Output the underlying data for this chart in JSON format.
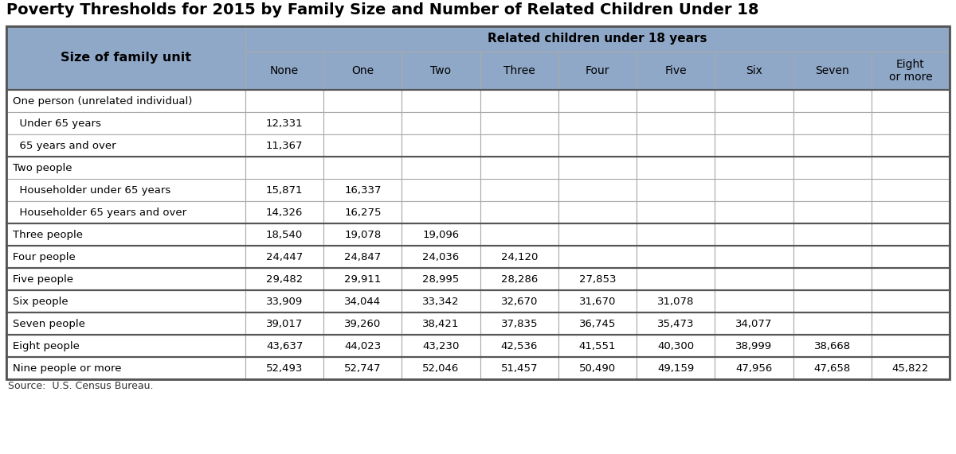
{
  "title": "Poverty Thresholds for 2015 by Family Size and Number of Related Children Under 18",
  "source": "Source:  U.S. Census Bureau.",
  "col_labels": [
    "None",
    "One",
    "Two",
    "Three",
    "Four",
    "Five",
    "Six",
    "Seven",
    "Eight\nor more"
  ],
  "rows": [
    [
      "One person (unrelated individual)",
      "",
      "",
      "",
      "",
      "",
      "",
      "",
      "",
      ""
    ],
    [
      "  Under 65 years",
      "12,331",
      "",
      "",
      "",
      "",
      "",
      "",
      "",
      ""
    ],
    [
      "  65 years and over",
      "11,367",
      "",
      "",
      "",
      "",
      "",
      "",
      "",
      ""
    ],
    [
      "Two people",
      "",
      "",
      "",
      "",
      "",
      "",
      "",
      "",
      ""
    ],
    [
      "  Householder under 65 years",
      "15,871",
      "16,337",
      "",
      "",
      "",
      "",
      "",
      "",
      ""
    ],
    [
      "  Householder 65 years and over",
      "14,326",
      "16,275",
      "",
      "",
      "",
      "",
      "",
      "",
      ""
    ],
    [
      "Three people",
      "18,540",
      "19,078",
      "19,096",
      "",
      "",
      "",
      "",
      "",
      ""
    ],
    [
      "Four people",
      "24,447",
      "24,847",
      "24,036",
      "24,120",
      "",
      "",
      "",
      "",
      ""
    ],
    [
      "Five people",
      "29,482",
      "29,911",
      "28,995",
      "28,286",
      "27,853",
      "",
      "",
      "",
      ""
    ],
    [
      "Six people",
      "33,909",
      "34,044",
      "33,342",
      "32,670",
      "31,670",
      "31,078",
      "",
      "",
      ""
    ],
    [
      "Seven people",
      "39,017",
      "39,260",
      "38,421",
      "37,835",
      "36,745",
      "35,473",
      "34,077",
      "",
      ""
    ],
    [
      "Eight people",
      "43,637",
      "44,023",
      "43,230",
      "42,536",
      "41,551",
      "40,300",
      "38,999",
      "38,668",
      ""
    ],
    [
      "Nine people or more",
      "52,493",
      "52,747",
      "52,046",
      "51,457",
      "50,490",
      "49,159",
      "47,956",
      "47,658",
      "45,822"
    ]
  ],
  "group_borders": [
    0,
    3,
    6
  ],
  "header_bg": "#8fa8c8",
  "cell_bg": "#ffffff",
  "border_thin": "#aaaaaa",
  "border_thick": "#555555",
  "title_color": "#000000",
  "header_text_color": "#000000",
  "cell_text_color": "#000000",
  "source_text_color": "#333333",
  "fig_bg": "#ffffff",
  "title_fontsize": 14,
  "header_fontsize": 10,
  "cell_fontsize": 9.5,
  "source_fontsize": 9
}
